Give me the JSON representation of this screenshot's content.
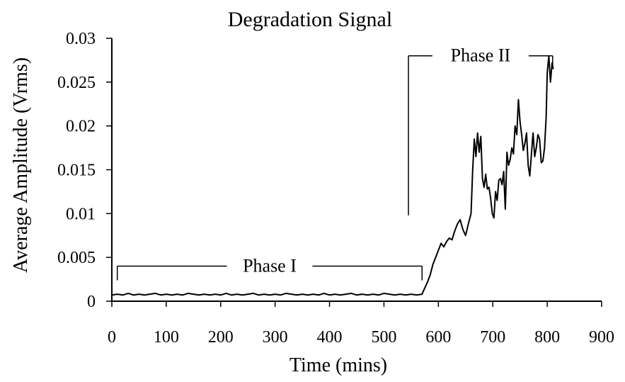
{
  "chart_data": {
    "type": "line",
    "title": "Degradation Signal",
    "xlabel": "Time (mins)",
    "ylabel": "Average Amplitude (Vrms)",
    "xlim": [
      0,
      900
    ],
    "ylim": [
      0,
      0.03
    ],
    "x_ticks": [
      0,
      100,
      200,
      300,
      400,
      500,
      600,
      700,
      800,
      900
    ],
    "x_tick_labels": [
      "0",
      "100",
      "200",
      "300",
      "400",
      "500",
      "600",
      "700",
      "800",
      "900"
    ],
    "y_ticks": [
      0,
      0.005,
      0.01,
      0.015,
      0.02,
      0.025,
      0.03
    ],
    "y_tick_labels": [
      "0",
      "0.005",
      "0.01",
      "0.015",
      "0.02",
      "0.025",
      "0.03"
    ],
    "grid": false,
    "legend": "none",
    "annotations": [
      {
        "text": "Phase I",
        "x_start": 10,
        "x_end": 570,
        "y": 0.004
      },
      {
        "text": "Phase II",
        "x_start": 545,
        "x_end": 810,
        "y": 0.028,
        "drop_to_y": 0.0098
      }
    ],
    "series": [
      {
        "color": "#000000",
        "x": [
          0,
          10,
          20,
          30,
          40,
          50,
          60,
          70,
          80,
          90,
          100,
          110,
          120,
          130,
          140,
          150,
          160,
          170,
          180,
          190,
          200,
          210,
          220,
          230,
          240,
          250,
          260,
          270,
          280,
          290,
          300,
          310,
          320,
          330,
          340,
          350,
          360,
          370,
          380,
          390,
          400,
          410,
          420,
          430,
          440,
          450,
          460,
          470,
          480,
          490,
          500,
          510,
          520,
          530,
          540,
          550,
          560,
          570,
          572,
          575,
          580,
          585,
          590,
          595,
          600,
          605,
          610,
          615,
          620,
          625,
          630,
          635,
          640,
          645,
          650,
          655,
          660,
          663,
          666,
          669,
          672,
          675,
          678,
          681,
          684,
          687,
          690,
          693,
          696,
          699,
          702,
          705,
          708,
          711,
          714,
          717,
          720,
          723,
          726,
          729,
          732,
          735,
          738,
          741,
          744,
          747,
          750,
          753,
          756,
          759,
          762,
          765,
          768,
          771,
          774,
          777,
          780,
          783,
          786,
          789,
          792,
          795,
          798,
          800,
          803,
          806,
          809,
          811
        ],
        "y": [
          0.0007,
          0.0008,
          0.0007,
          0.0009,
          0.0007,
          0.0008,
          0.0007,
          0.0008,
          0.0009,
          0.0007,
          0.0008,
          0.0007,
          0.0008,
          0.0007,
          0.0009,
          0.0008,
          0.0007,
          0.0008,
          0.0007,
          0.0008,
          0.0007,
          0.0009,
          0.0007,
          0.0008,
          0.0007,
          0.0008,
          0.0009,
          0.0007,
          0.0008,
          0.0007,
          0.0008,
          0.0007,
          0.0009,
          0.0008,
          0.0007,
          0.0008,
          0.0007,
          0.0008,
          0.0007,
          0.0009,
          0.0007,
          0.0008,
          0.0007,
          0.0008,
          0.0009,
          0.0007,
          0.0008,
          0.0007,
          0.0008,
          0.0007,
          0.0009,
          0.0008,
          0.0007,
          0.0008,
          0.0007,
          0.0008,
          0.0007,
          0.0008,
          0.0011,
          0.0015,
          0.0022,
          0.003,
          0.0042,
          0.005,
          0.0058,
          0.0066,
          0.0062,
          0.0068,
          0.0072,
          0.007,
          0.008,
          0.0088,
          0.0093,
          0.0082,
          0.0075,
          0.0088,
          0.01,
          0.015,
          0.0185,
          0.0165,
          0.0192,
          0.017,
          0.0188,
          0.014,
          0.013,
          0.0145,
          0.0128,
          0.013,
          0.0118,
          0.01,
          0.0095,
          0.0125,
          0.0115,
          0.0138,
          0.014,
          0.0133,
          0.0148,
          0.0105,
          0.017,
          0.0155,
          0.0162,
          0.0175,
          0.0168,
          0.02,
          0.019,
          0.023,
          0.0205,
          0.019,
          0.0172,
          0.018,
          0.0192,
          0.0155,
          0.0143,
          0.0168,
          0.0192,
          0.0165,
          0.0175,
          0.019,
          0.0185,
          0.0158,
          0.016,
          0.0175,
          0.021,
          0.026,
          0.028,
          0.025,
          0.0272,
          0.0265
        ]
      }
    ]
  }
}
